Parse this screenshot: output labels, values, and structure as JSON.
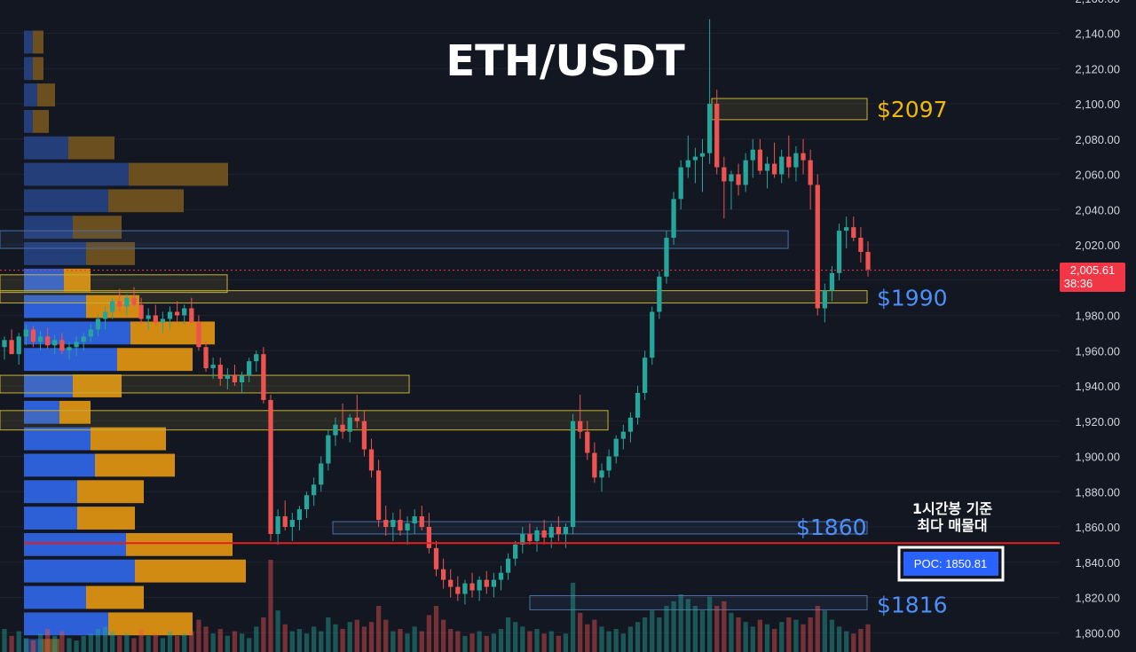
{
  "chart_data": {
    "type": "candlestick",
    "title": "ETH/USDT",
    "y_axis": {
      "range": [
        1790,
        2150
      ],
      "ticks": [
        "2,140.00",
        "2,120.00",
        "2,100.00",
        "2,080.00",
        "2,060.00",
        "2,040.00",
        "2,020.00",
        "2,000.00",
        "1,980.00",
        "1,960.00",
        "1,940.00",
        "1,920.00",
        "1,900.00",
        "1,880.00",
        "1,860.00",
        "1,840.00",
        "1,820.00",
        "1,800.00"
      ],
      "tick_values": [
        2140,
        2120,
        2100,
        2080,
        2060,
        2040,
        2020,
        2000,
        1980,
        1960,
        1940,
        1920,
        1900,
        1880,
        1860,
        1840,
        1820,
        1800
      ]
    },
    "current_price": {
      "value": 2005.61,
      "label": "2,005.61",
      "countdown": "38:36"
    },
    "levels": [
      {
        "label": "$2097",
        "price": 2097,
        "color": "#f0b90b"
      },
      {
        "label": "$1990",
        "price": 1990,
        "color": "#4d8ef7"
      },
      {
        "label": "$1860",
        "price": 1860,
        "color": "#4d8ef7"
      },
      {
        "label": "$1816",
        "price": 1816,
        "color": "#4d8ef7"
      }
    ],
    "poc": {
      "price": 1850.81,
      "label": "POC: 1850.81",
      "note_line1": "1시간봉 기준",
      "note_line2": "최다 매물대"
    },
    "zones": [
      {
        "top": 2103,
        "bottom": 2091,
        "x0": 0.6266,
        "x1": 0.7633,
        "color": "#c9b037"
      },
      {
        "top": 2028,
        "bottom": 2018,
        "x0": 0.0,
        "x1": 0.6938,
        "color": "#4a6fa5"
      },
      {
        "top": 2003,
        "bottom": 1993,
        "x0": 0.0,
        "x1": 0.2,
        "color": "#c9b037"
      },
      {
        "top": 1994,
        "bottom": 1987,
        "x0": 0.0,
        "x1": 0.7633,
        "color": "#c9b037"
      },
      {
        "top": 1946,
        "bottom": 1936,
        "x0": 0.0,
        "x1": 0.3602,
        "color": "#c9b037"
      },
      {
        "top": 1926,
        "bottom": 1915,
        "x0": 0.0,
        "x1": 0.5352,
        "color": "#c9b037"
      },
      {
        "top": 1863,
        "bottom": 1856,
        "x0": 0.293,
        "x1": 0.7633,
        "color": "#4a6fa5"
      },
      {
        "top": 1821,
        "bottom": 1813,
        "x0": 0.4664,
        "x1": 0.7633,
        "color": "#4a6fa5"
      }
    ],
    "volume_profile": {
      "bin_size": 15,
      "bins": [
        {
          "price": 2135,
          "buy": 10,
          "sell": 12
        },
        {
          "price": 2120,
          "buy": 10,
          "sell": 12
        },
        {
          "price": 2105,
          "buy": 15,
          "sell": 20
        },
        {
          "price": 2090,
          "buy": 10,
          "sell": 18
        },
        {
          "price": 2075,
          "buy": 50,
          "sell": 52
        },
        {
          "price": 2060,
          "buy": 118,
          "sell": 112
        },
        {
          "price": 2045,
          "buy": 95,
          "sell": 85
        },
        {
          "price": 2030,
          "buy": 55,
          "sell": 55
        },
        {
          "price": 2015,
          "buy": 70,
          "sell": 55
        },
        {
          "price": 2000,
          "buy": 45,
          "sell": 30
        },
        {
          "price": 1985,
          "buy": 70,
          "sell": 60
        },
        {
          "price": 1970,
          "buy": 120,
          "sell": 95
        },
        {
          "price": 1955,
          "buy": 105,
          "sell": 85
        },
        {
          "price": 1940,
          "buy": 55,
          "sell": 55
        },
        {
          "price": 1925,
          "buy": 40,
          "sell": 35
        },
        {
          "price": 1910,
          "buy": 75,
          "sell": 85
        },
        {
          "price": 1895,
          "buy": 80,
          "sell": 90
        },
        {
          "price": 1880,
          "buy": 60,
          "sell": 75
        },
        {
          "price": 1865,
          "buy": 60,
          "sell": 65
        },
        {
          "price": 1850,
          "buy": 115,
          "sell": 120
        },
        {
          "price": 1835,
          "buy": 125,
          "sell": 125
        },
        {
          "price": 1820,
          "buy": 70,
          "sell": 65
        },
        {
          "price": 1805,
          "buy": 95,
          "sell": 95
        },
        {
          "price": 1790,
          "buy": 20,
          "sell": 20
        }
      ]
    },
    "candles": [
      [
        1962,
        1968,
        1955,
        1966
      ],
      [
        1966,
        1972,
        1960,
        1958
      ],
      [
        1958,
        1970,
        1952,
        1968
      ],
      [
        1968,
        1975,
        1963,
        1972
      ],
      [
        1972,
        1974,
        1962,
        1965
      ],
      [
        1965,
        1971,
        1960,
        1968
      ],
      [
        1968,
        1973,
        1961,
        1963
      ],
      [
        1963,
        1969,
        1958,
        1966
      ],
      [
        1966,
        1970,
        1958,
        1960
      ],
      [
        1960,
        1965,
        1955,
        1962
      ],
      [
        1962,
        1968,
        1957,
        1965
      ],
      [
        1965,
        1970,
        1960,
        1968
      ],
      [
        1968,
        1975,
        1965,
        1972
      ],
      [
        1972,
        1980,
        1968,
        1978
      ],
      [
        1978,
        1985,
        1972,
        1982
      ],
      [
        1982,
        1990,
        1978,
        1988
      ],
      [
        1988,
        1995,
        1982,
        1985
      ],
      [
        1985,
        1992,
        1980,
        1990
      ],
      [
        1990,
        1996,
        1985,
        1986
      ],
      [
        1986,
        1990,
        1975,
        1978
      ],
      [
        1978,
        1984,
        1972,
        1980
      ],
      [
        1980,
        1986,
        1974,
        1976
      ],
      [
        1976,
        1982,
        1970,
        1978
      ],
      [
        1978,
        1985,
        1972,
        1982
      ],
      [
        1982,
        1988,
        1976,
        1980
      ],
      [
        1980,
        1986,
        1975,
        1984
      ],
      [
        1984,
        1990,
        1976,
        1976
      ],
      [
        1976,
        1980,
        1960,
        1962
      ],
      [
        1962,
        1966,
        1948,
        1950
      ],
      [
        1950,
        1956,
        1944,
        1952
      ],
      [
        1952,
        1956,
        1940,
        1944
      ],
      [
        1944,
        1950,
        1938,
        1946
      ],
      [
        1946,
        1952,
        1940,
        1942
      ],
      [
        1942,
        1948,
        1936,
        1946
      ],
      [
        1946,
        1956,
        1942,
        1954
      ],
      [
        1954,
        1960,
        1948,
        1958
      ],
      [
        1958,
        1962,
        1930,
        1932
      ],
      [
        1932,
        1935,
        1852,
        1856
      ],
      [
        1856,
        1870,
        1850,
        1866
      ],
      [
        1866,
        1875,
        1858,
        1860
      ],
      [
        1860,
        1868,
        1852,
        1864
      ],
      [
        1864,
        1872,
        1858,
        1870
      ],
      [
        1870,
        1880,
        1865,
        1878
      ],
      [
        1878,
        1888,
        1872,
        1884
      ],
      [
        1884,
        1900,
        1880,
        1896
      ],
      [
        1896,
        1915,
        1892,
        1912
      ],
      [
        1912,
        1922,
        1906,
        1918
      ],
      [
        1918,
        1930,
        1910,
        1914
      ],
      [
        1914,
        1924,
        1908,
        1922
      ],
      [
        1922,
        1935,
        1916,
        1920
      ],
      [
        1920,
        1926,
        1900,
        1904
      ],
      [
        1904,
        1910,
        1888,
        1892
      ],
      [
        1892,
        1898,
        1860,
        1864
      ],
      [
        1864,
        1872,
        1855,
        1860
      ],
      [
        1860,
        1868,
        1852,
        1864
      ],
      [
        1864,
        1870,
        1855,
        1858
      ],
      [
        1858,
        1866,
        1850,
        1862
      ],
      [
        1862,
        1870,
        1856,
        1866
      ],
      [
        1866,
        1872,
        1858,
        1860
      ],
      [
        1860,
        1868,
        1845,
        1848
      ],
      [
        1848,
        1852,
        1832,
        1836
      ],
      [
        1836,
        1842,
        1825,
        1830
      ],
      [
        1830,
        1836,
        1820,
        1826
      ],
      [
        1826,
        1832,
        1818,
        1822
      ],
      [
        1822,
        1830,
        1816,
        1828
      ],
      [
        1828,
        1834,
        1820,
        1824
      ],
      [
        1824,
        1832,
        1818,
        1830
      ],
      [
        1830,
        1835,
        1822,
        1826
      ],
      [
        1826,
        1834,
        1820,
        1830
      ],
      [
        1830,
        1838,
        1824,
        1834
      ],
      [
        1834,
        1845,
        1830,
        1842
      ],
      [
        1842,
        1852,
        1838,
        1850
      ],
      [
        1850,
        1860,
        1845,
        1856
      ],
      [
        1856,
        1862,
        1850,
        1852
      ],
      [
        1852,
        1860,
        1846,
        1858
      ],
      [
        1858,
        1864,
        1850,
        1854
      ],
      [
        1854,
        1862,
        1848,
        1860
      ],
      [
        1860,
        1866,
        1852,
        1856
      ],
      [
        1856,
        1862,
        1848,
        1860
      ],
      [
        1860,
        1924,
        1856,
        1920
      ],
      [
        1920,
        1935,
        1910,
        1914
      ],
      [
        1914,
        1920,
        1898,
        1902
      ],
      [
        1902,
        1908,
        1885,
        1888
      ],
      [
        1888,
        1896,
        1880,
        1892
      ],
      [
        1892,
        1904,
        1888,
        1900
      ],
      [
        1900,
        1912,
        1896,
        1910
      ],
      [
        1910,
        1918,
        1904,
        1914
      ],
      [
        1914,
        1925,
        1908,
        1922
      ],
      [
        1922,
        1940,
        1918,
        1936
      ],
      [
        1936,
        1960,
        1932,
        1956
      ],
      [
        1956,
        1985,
        1952,
        1982
      ],
      [
        1982,
        2005,
        1978,
        2002
      ],
      [
        2002,
        2028,
        1998,
        2024
      ],
      [
        2024,
        2050,
        2020,
        2046
      ],
      [
        2046,
        2068,
        2040,
        2064
      ],
      [
        2064,
        2082,
        2058,
        2068
      ],
      [
        2068,
        2075,
        2055,
        2070
      ],
      [
        2070,
        2080,
        2050,
        2072
      ],
      [
        2072,
        2148,
        2066,
        2100
      ],
      [
        2100,
        2108,
        2060,
        2064
      ],
      [
        2064,
        2070,
        2035,
        2056
      ],
      [
        2056,
        2062,
        2040,
        2060
      ],
      [
        2060,
        2066,
        2048,
        2054
      ],
      [
        2054,
        2072,
        2050,
        2068
      ],
      [
        2068,
        2080,
        2058,
        2074
      ],
      [
        2074,
        2080,
        2060,
        2062
      ],
      [
        2062,
        2070,
        2052,
        2066
      ],
      [
        2066,
        2078,
        2058,
        2060
      ],
      [
        2060,
        2074,
        2055,
        2070
      ],
      [
        2070,
        2082,
        2058,
        2064
      ],
      [
        2064,
        2076,
        2056,
        2072
      ],
      [
        2072,
        2080,
        2060,
        2068
      ],
      [
        2068,
        2074,
        2040,
        2054
      ],
      [
        2054,
        2060,
        1980,
        1984
      ],
      [
        1984,
        1998,
        1976,
        1994
      ],
      [
        1994,
        2008,
        1988,
        2004
      ],
      [
        2004,
        2032,
        2000,
        2028
      ],
      [
        2028,
        2036,
        2018,
        2030
      ],
      [
        2030,
        2036,
        2022,
        2024
      ],
      [
        2024,
        2030,
        2010,
        2016
      ],
      [
        2016,
        2022,
        2002,
        2006
      ]
    ],
    "volumes": [
      20,
      14,
      18,
      12,
      10,
      16,
      20,
      14,
      18,
      12,
      10,
      14,
      16,
      20,
      22,
      18,
      14,
      16,
      12,
      20,
      14,
      16,
      12,
      18,
      14,
      16,
      18,
      28,
      22,
      16,
      20,
      14,
      18,
      16,
      12,
      22,
      30,
      80,
      36,
      24,
      18,
      20,
      16,
      22,
      18,
      30,
      24,
      20,
      26,
      28,
      22,
      26,
      40,
      28,
      18,
      20,
      16,
      22,
      18,
      32,
      40,
      28,
      20,
      18,
      14,
      16,
      18,
      14,
      16,
      20,
      30,
      26,
      22,
      18,
      20,
      16,
      18,
      14,
      16,
      60,
      34,
      24,
      28,
      22,
      18,
      20,
      16,
      22,
      26,
      30,
      36,
      30,
      40,
      44,
      50,
      46,
      40,
      36,
      48,
      40,
      44,
      34,
      30,
      26,
      22,
      28,
      24,
      20,
      26,
      30,
      28,
      24,
      30,
      40,
      36,
      28,
      22,
      18,
      16,
      20,
      24
    ]
  }
}
